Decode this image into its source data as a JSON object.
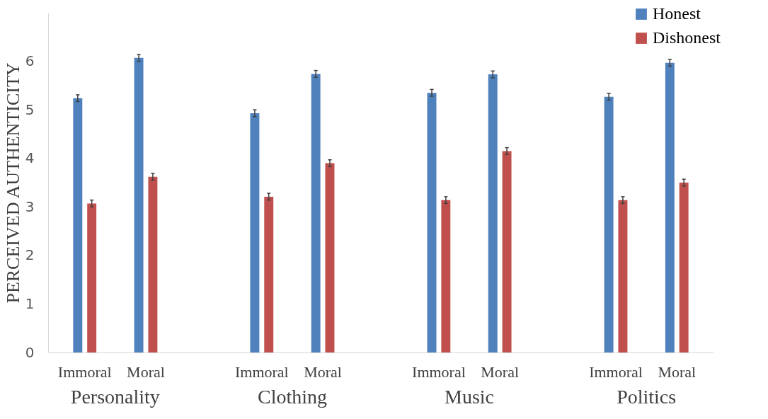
{
  "chart_data": {
    "type": "bar",
    "ylabel": "PERCEIVED AUTHENTICITY",
    "categories": [
      "Immoral",
      "Moral",
      "Immoral",
      "Moral",
      "Immoral",
      "Moral",
      "Immoral",
      "Moral"
    ],
    "annotations": [
      "Personality",
      "Clothing",
      "Music",
      "Politics"
    ],
    "series": [
      {
        "name": "Honest",
        "color": "#4f81bd",
        "values": [
          5.24,
          6.07,
          4.93,
          5.74,
          5.35,
          5.73,
          5.27,
          5.97
        ],
        "errors": [
          0.07,
          0.07,
          0.07,
          0.07,
          0.07,
          0.07,
          0.07,
          0.07
        ]
      },
      {
        "name": "Dishonest",
        "color": "#c0504d",
        "values": [
          3.07,
          3.62,
          3.21,
          3.9,
          3.14,
          4.15,
          3.14,
          3.5
        ],
        "errors": [
          0.07,
          0.07,
          0.07,
          0.07,
          0.07,
          0.07,
          0.07,
          0.07
        ]
      }
    ],
    "ylim": [
      0,
      7
    ],
    "yticks": [
      0,
      1,
      2,
      3,
      4,
      5,
      6
    ],
    "grid": false,
    "legend": "top right"
  }
}
